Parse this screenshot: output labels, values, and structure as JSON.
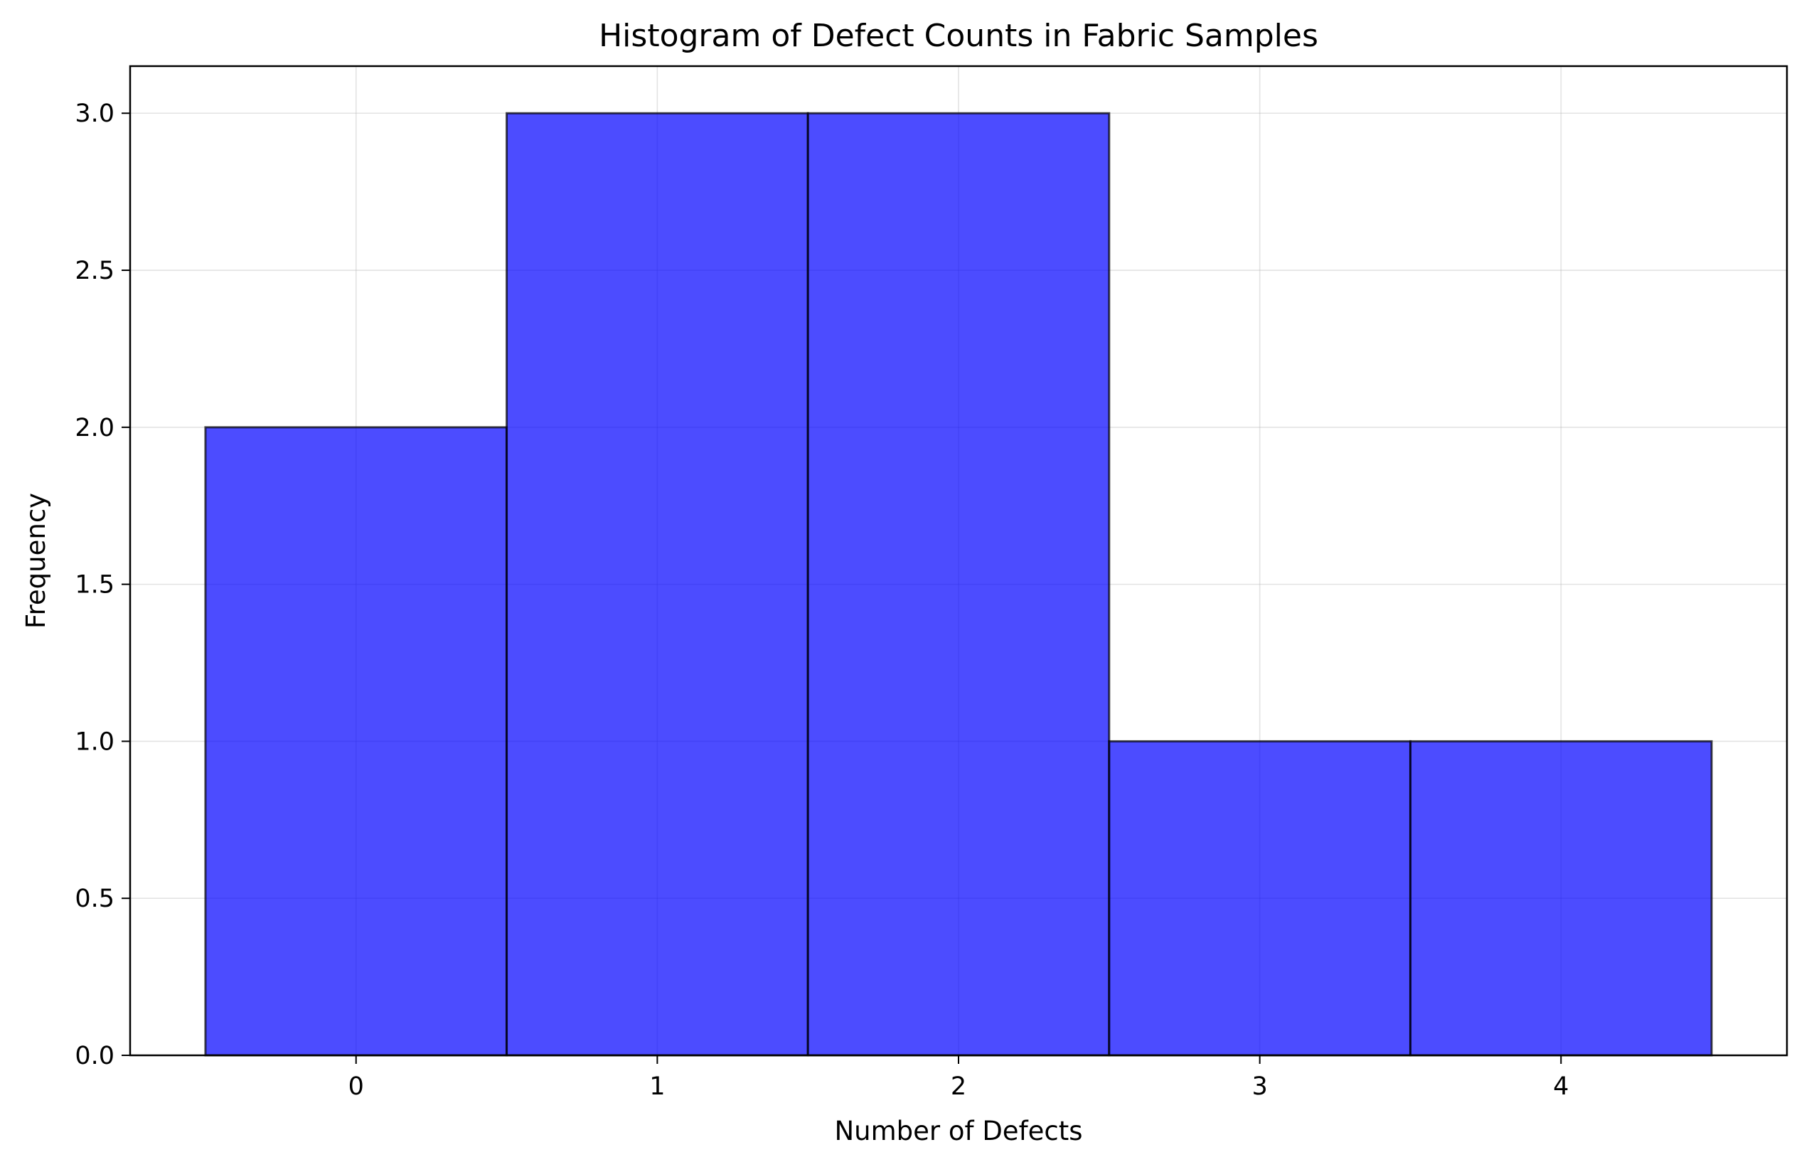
{
  "chart_data": {
    "type": "bar",
    "title": "Histogram of Defect Counts in Fabric Samples",
    "xlabel": "Number of Defects",
    "ylabel": "Frequency",
    "bins": [
      {
        "start": -0.5,
        "end": 0.5,
        "value": 2
      },
      {
        "start": 0.5,
        "end": 1.5,
        "value": 3
      },
      {
        "start": 1.5,
        "end": 2.5,
        "value": 3
      },
      {
        "start": 2.5,
        "end": 3.5,
        "value": 1
      },
      {
        "start": 3.5,
        "end": 4.5,
        "value": 1
      }
    ],
    "xlim": [
      -0.75,
      4.75
    ],
    "ylim": [
      0,
      3.15
    ],
    "xticks": [
      0,
      1,
      2,
      3,
      4
    ],
    "xtick_labels": [
      "0",
      "1",
      "2",
      "3",
      "4"
    ],
    "yticks": [
      0,
      0.5,
      1,
      1.5,
      2,
      2.5,
      3
    ],
    "ytick_labels": [
      "0.0",
      "0.5",
      "1.0",
      "1.5",
      "2.0",
      "2.5",
      "3.0"
    ],
    "grid": true,
    "colors": {
      "bar_fill": "#0000ff",
      "bar_opacity": 0.7,
      "bar_edge": "#000000"
    }
  }
}
